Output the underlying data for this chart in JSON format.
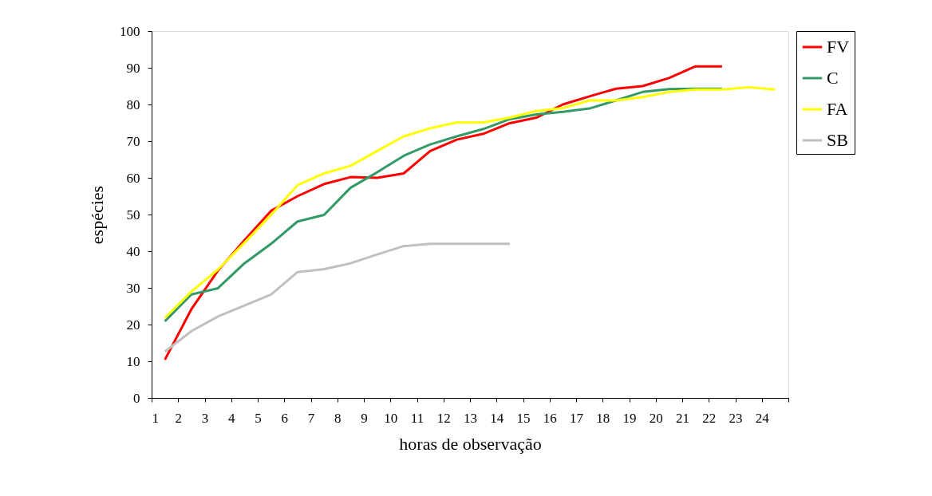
{
  "chart_data": {
    "type": "line",
    "xlabel": "horas de observação",
    "ylabel": "espécies",
    "xlim": [
      1,
      25
    ],
    "xticks": [
      1,
      2,
      3,
      4,
      5,
      6,
      7,
      8,
      9,
      10,
      11,
      12,
      13,
      14,
      15,
      16,
      17,
      18,
      19,
      20,
      21,
      22,
      23,
      24,
      {
        "value": 25,
        "label": null
      }
    ],
    "ylim": [
      0,
      100
    ],
    "yticks": [
      0,
      10,
      20,
      30,
      40,
      50,
      60,
      70,
      80,
      90,
      100
    ],
    "grid": false,
    "legend": "right",
    "marker": "none",
    "line_style": "solid",
    "series": [
      {
        "name": "FV",
        "color": "#ff0000",
        "x": [
          1.5,
          2.5,
          3.5,
          4.5,
          5.5,
          6.5,
          7.5,
          8.5,
          9.5,
          10.5,
          11.5,
          12.5,
          13.5,
          14.5,
          15.5,
          16.5,
          17.5,
          18.5,
          19.5,
          20.5,
          21.5,
          22.5
        ],
        "values": [
          10.4,
          24.2,
          34.7,
          43,
          51,
          55,
          58.3,
          60.2,
          60,
          61.2,
          67.3,
          70.4,
          72,
          74.9,
          76.4,
          80,
          82.2,
          84.3,
          85,
          87.2,
          90.4,
          90.4
        ]
      },
      {
        "name": "C",
        "color": "#339966",
        "x": [
          1.5,
          2.5,
          3.5,
          4.5,
          5.5,
          6.5,
          7.5,
          8.5,
          9.5,
          10.5,
          11.5,
          12.5,
          13.5,
          14.5,
          15.5,
          16.5,
          17.5,
          18.5,
          19.5,
          20.5,
          21.5,
          22.5
        ],
        "values": [
          20.9,
          28.2,
          29.9,
          36.7,
          42,
          48.1,
          49.9,
          57.3,
          61.5,
          66,
          69.1,
          71.3,
          73.3,
          76,
          77.3,
          78,
          78.9,
          81.1,
          83.4,
          84.2,
          84.3,
          84.3
        ]
      },
      {
        "name": "FA",
        "color": "#ffff00",
        "x": [
          1.5,
          2.5,
          3.5,
          4.5,
          5.5,
          6.5,
          7.5,
          8.5,
          9.5,
          10.5,
          11.5,
          12.5,
          13.5,
          14.5,
          15.5,
          16.5,
          17.5,
          18.5,
          19.5,
          20.5,
          21.5,
          22.5,
          23.5,
          24.5
        ],
        "values": [
          21.8,
          29,
          35,
          42.3,
          49.9,
          58,
          61.2,
          63.3,
          67.3,
          71.3,
          73.5,
          75.1,
          75.1,
          76.4,
          78.2,
          79,
          81.1,
          81.1,
          82,
          83.4,
          84.1,
          84.1,
          84.7,
          84.1
        ]
      },
      {
        "name": "SB",
        "color": "#c0c0c0",
        "x": [
          1.5,
          2.5,
          3.5,
          4.5,
          5.5,
          6.5,
          7.5,
          8.5,
          9.5,
          10.5,
          11.5,
          12.5,
          13.5,
          14.5
        ],
        "values": [
          12.6,
          18.2,
          22.2,
          25.2,
          28.2,
          34.3,
          35.1,
          36.7,
          39.1,
          41.4,
          42,
          42,
          42,
          42
        ]
      }
    ]
  }
}
